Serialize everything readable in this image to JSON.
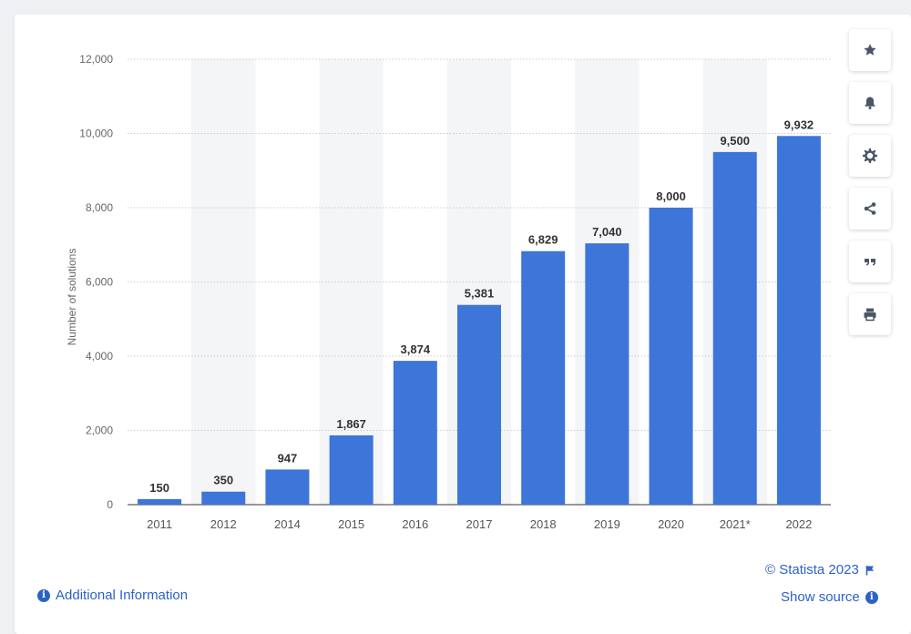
{
  "chart_data": {
    "type": "bar",
    "ylabel": "Number of solutions",
    "categories": [
      "2011",
      "2012",
      "2014",
      "2015",
      "2016",
      "2017",
      "2018",
      "2019",
      "2020",
      "2021*",
      "2022"
    ],
    "values": [
      150,
      350,
      947,
      1867,
      3874,
      5381,
      6829,
      7040,
      8000,
      9500,
      9932
    ],
    "value_labels": [
      "150",
      "350",
      "947",
      "1,867",
      "3,874",
      "5,381",
      "6,829",
      "7,040",
      "8,000",
      "9,500",
      "9,932"
    ],
    "ylim": [
      0,
      12000
    ],
    "yticks": [
      0,
      2000,
      4000,
      6000,
      8000,
      10000,
      12000
    ],
    "ytick_labels": [
      "0",
      "2,000",
      "4,000",
      "6,000",
      "8,000",
      "10,000",
      "12,000"
    ],
    "grid": true,
    "bar_color": "#3d75d9"
  },
  "footer": {
    "copyright": "© Statista 2023",
    "additional_info": "Additional Information",
    "show_source": "Show source"
  },
  "sidebar": {
    "icons": [
      "star-icon",
      "bell-icon",
      "gear-icon",
      "share-icon",
      "quote-icon",
      "print-icon"
    ]
  },
  "colors": {
    "link": "#2c62c8",
    "icon": "#4a5568",
    "alt_band": "#f4f5f7"
  }
}
